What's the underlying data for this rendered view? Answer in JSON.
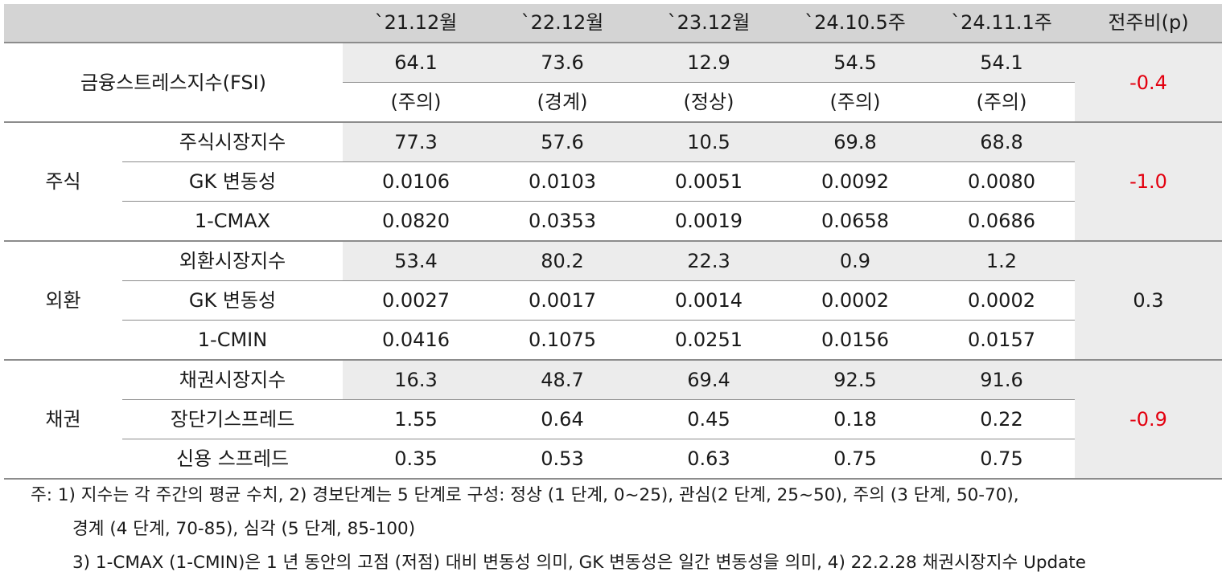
{
  "header": {
    "columns": [
      "`21.12월",
      "`22.12월",
      "`23.12월",
      "`24.10.5주",
      "`24.11.1주",
      "전주비(p)"
    ]
  },
  "fsi": {
    "label": "금융스트레스지수(FSI)",
    "values": [
      "64.1",
      "73.6",
      "12.9",
      "54.5",
      "54.1"
    ],
    "statuses": [
      "(주의)",
      "(경계)",
      "(정상)",
      "(주의)",
      "(주의)"
    ],
    "change": "-0.4"
  },
  "groups": [
    {
      "name": "주식",
      "change": "-1.0",
      "rows": [
        {
          "label": "주식시장지수",
          "values": [
            "77.3",
            "57.6",
            "10.5",
            "69.8",
            "68.8"
          ]
        },
        {
          "label": "GK 변동성",
          "values": [
            "0.0106",
            "0.0103",
            "0.0051",
            "0.0092",
            "0.0080"
          ]
        },
        {
          "label": "1-CMAX",
          "values": [
            "0.0820",
            "0.0353",
            "0.0019",
            "0.0658",
            "0.0686"
          ]
        }
      ]
    },
    {
      "name": "외환",
      "change": "0.3",
      "rows": [
        {
          "label": "외환시장지수",
          "values": [
            "53.4",
            "80.2",
            "22.3",
            "0.9",
            "1.2"
          ]
        },
        {
          "label": "GK 변동성",
          "values": [
            "0.0027",
            "0.0017",
            "0.0014",
            "0.0002",
            "0.0002"
          ]
        },
        {
          "label": "1-CMIN",
          "values": [
            "0.0416",
            "0.1075",
            "0.0251",
            "0.0156",
            "0.0157"
          ]
        }
      ]
    },
    {
      "name": "채권",
      "change": "-0.9",
      "rows": [
        {
          "label": "채권시장지수",
          "values": [
            "16.3",
            "48.7",
            "69.4",
            "92.5",
            "91.6"
          ]
        },
        {
          "label": "장단기스프레드",
          "values": [
            "1.55",
            "0.64",
            "0.45",
            "0.18",
            "0.22"
          ]
        },
        {
          "label": "신용 스프레드",
          "values": [
            "0.35",
            "0.53",
            "0.63",
            "0.75",
            "0.75"
          ]
        }
      ]
    }
  ],
  "colors": {
    "header_bg": "#d4d4d4",
    "shade_bg": "#ececec",
    "negative": "#e3000f"
  },
  "notes": [
    "주: 1) 지수는 각 주간의 평균 수치, 2) 경보단계는 5 단계로 구성: 정상 (1 단계, 0~25), 관심(2 단계, 25~50), 주의 (3 단계, 50-70),",
    "경계 (4 단계, 70-85), 심각 (5 단계, 85-100)",
    "3) 1-CMAX (1-CMIN)은 1 년 동안의 고점 (저점) 대비 변동성 의미, GK 변동성은 일간 변동성을 의미, 4) 22.2.28 채권시장지수 Update"
  ]
}
